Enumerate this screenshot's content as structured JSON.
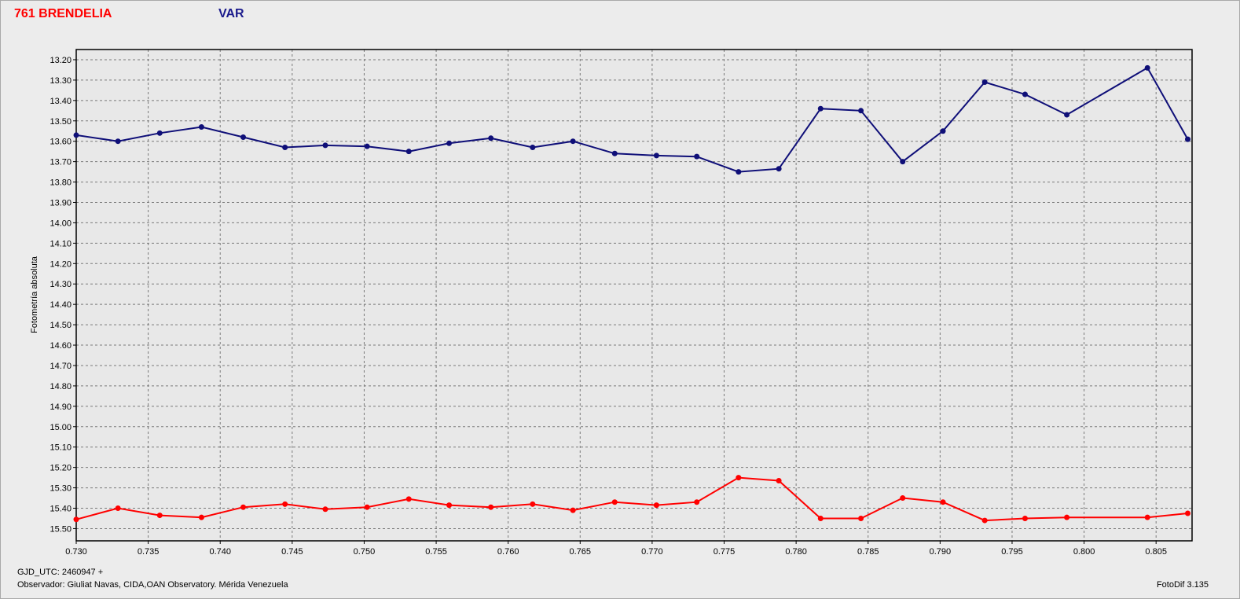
{
  "object_name": "761 BRENDELIA",
  "series_label": "VAR",
  "footer": {
    "gjd": "GJD_UTC: 2460947 +",
    "observer": "Observador: Giuliat Navas, CIDA,OAN Observatory. Mérida Venezuela",
    "software": "FotoDif 3.135"
  },
  "colors": {
    "var": "#0f0f78",
    "object": "#ff0000"
  },
  "chart_data": {
    "type": "line",
    "title": "",
    "xlabel": "",
    "ylabel": "Fotometría absoluta",
    "xlim": [
      0.73,
      0.8075
    ],
    "ylim": [
      13.15,
      15.56
    ],
    "y_inverted": true,
    "grid": true,
    "x_ticks": [
      "0.730",
      "0.735",
      "0.740",
      "0.745",
      "0.750",
      "0.755",
      "0.760",
      "0.765",
      "0.770",
      "0.775",
      "0.780",
      "0.785",
      "0.790",
      "0.795",
      "0.800",
      "0.805"
    ],
    "y_ticks": [
      "13.20",
      "13.30",
      "13.40",
      "13.50",
      "13.60",
      "13.70",
      "13.80",
      "13.90",
      "14.00",
      "14.10",
      "14.20",
      "14.30",
      "14.40",
      "14.50",
      "14.60",
      "14.70",
      "14.80",
      "14.90",
      "15.00",
      "15.10",
      "15.20",
      "15.30",
      "15.40",
      "15.50"
    ],
    "x": [
      0.73,
      0.7329,
      0.7358,
      0.7387,
      0.7416,
      0.7445,
      0.7473,
      0.7502,
      0.7531,
      0.7559,
      0.7588,
      0.7617,
      0.7645,
      0.7674,
      0.7703,
      0.7731,
      0.776,
      0.7788,
      0.7817,
      0.7845,
      0.7874,
      0.7902,
      0.7931,
      0.7959,
      0.7988,
      0.8044,
      0.8072
    ],
    "series": [
      {
        "key": "var",
        "values": [
          13.57,
          13.6,
          13.56,
          13.53,
          13.58,
          13.63,
          13.62,
          13.625,
          13.65,
          13.61,
          13.585,
          13.63,
          13.6,
          13.66,
          13.67,
          13.675,
          13.75,
          13.735,
          13.44,
          13.45,
          13.7,
          13.55,
          13.31,
          13.37,
          13.47,
          13.24,
          13.59
        ]
      },
      {
        "key": "object",
        "values": [
          15.455,
          15.4,
          15.435,
          15.445,
          15.395,
          15.38,
          15.405,
          15.395,
          15.355,
          15.385,
          15.395,
          15.38,
          15.41,
          15.37,
          15.385,
          15.37,
          15.25,
          15.265,
          15.45,
          15.45,
          15.35,
          15.37,
          15.46,
          15.45,
          15.445,
          15.445,
          15.425
        ]
      }
    ]
  }
}
